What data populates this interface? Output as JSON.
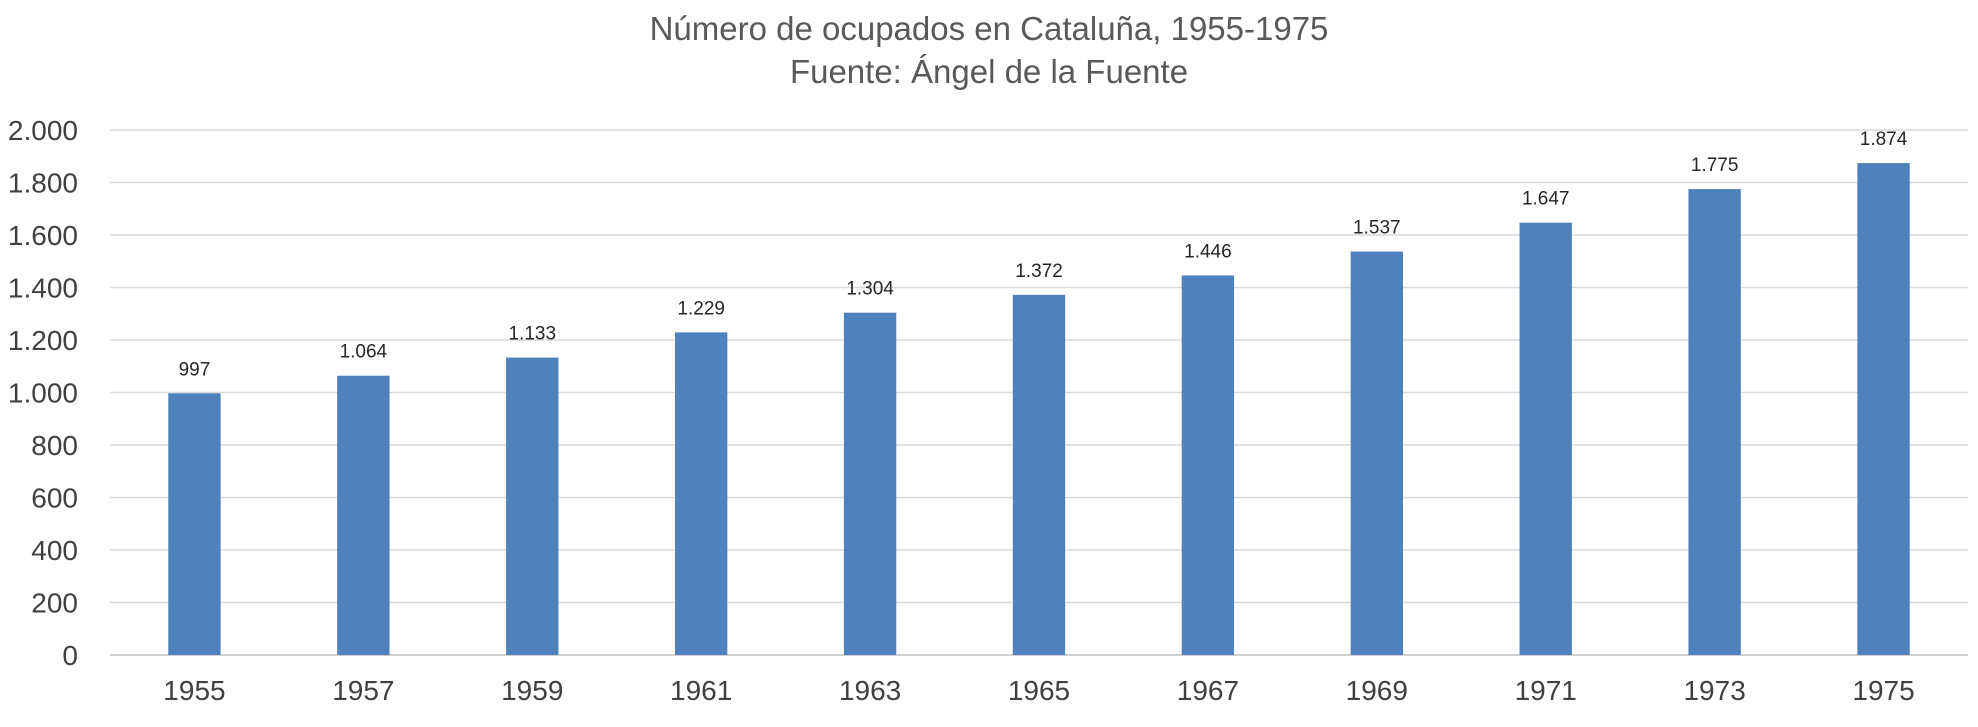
{
  "chart_data": {
    "type": "bar",
    "title": "Número de ocupados en Cataluña, 1955-1975",
    "subtitle": "Fuente: Ángel de la Fuente",
    "xlabel": "",
    "ylabel": "",
    "categories": [
      "1955",
      "1957",
      "1959",
      "1961",
      "1963",
      "1965",
      "1967",
      "1969",
      "1971",
      "1973",
      "1975"
    ],
    "values": [
      997,
      1064,
      1133,
      1229,
      1304,
      1372,
      1446,
      1537,
      1647,
      1775,
      1874
    ],
    "value_labels": [
      "997",
      "1.064",
      "1.133",
      "1.229",
      "1.304",
      "1.372",
      "1.446",
      "1.537",
      "1.647",
      "1.775",
      "1.874"
    ],
    "ylim": [
      0,
      2000
    ],
    "yticks": [
      0,
      200,
      400,
      600,
      800,
      1000,
      1200,
      1400,
      1600,
      1800,
      2000
    ],
    "ytick_labels": [
      "0",
      "200",
      "400",
      "600",
      "800",
      "1.000",
      "1.200",
      "1.400",
      "1.600",
      "1.800",
      "2.000"
    ],
    "grid": true,
    "legend": "none",
    "bar_color": "#4f81bd"
  }
}
